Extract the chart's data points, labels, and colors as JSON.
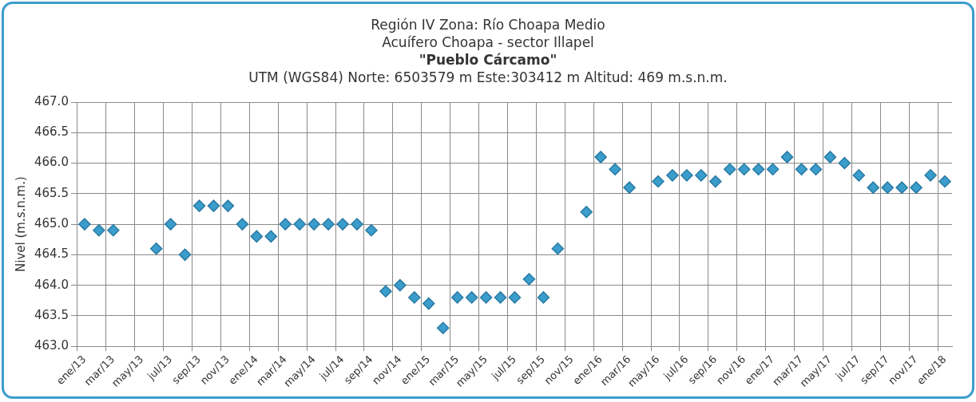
{
  "chart_data": {
    "type": "scatter",
    "title": "Región IV  Zona: Río Choapa Medio",
    "subtitle": "Acuífero Choapa - sector Illapel",
    "annotations": [
      "\"Pueblo Cárcamo\"",
      "UTM (WGS84) Norte: 6503579 m   Este:303412 m   Altitud: 469 m.s.n.m."
    ],
    "ylabel": "Nivel (m.s.n.m.)",
    "categories": [
      "ene/13",
      null,
      "mar/13",
      null,
      "may/13",
      null,
      "jul/13",
      null,
      "sep/13",
      null,
      "nov/13",
      null,
      "ene/14",
      null,
      "mar/14",
      null,
      "may/14",
      null,
      "jul/14",
      null,
      "sep/14",
      null,
      "nov/14",
      null,
      "ene/15",
      null,
      "mar/15",
      null,
      "may/15",
      null,
      "jul/15",
      null,
      "sep/15",
      null,
      "nov/15",
      null,
      "ene/16",
      null,
      "mar/16",
      null,
      "may/16",
      null,
      "jul/16",
      null,
      "sep/16",
      null,
      "nov/16",
      null,
      "ene/17",
      null,
      "mar/17",
      null,
      "may/17",
      null,
      "jul/17",
      null,
      "sep/17",
      null,
      "nov/17",
      null,
      "ene/18"
    ],
    "series": [
      {
        "color": "#3a9dcb",
        "values": [
          465.0,
          464.9,
          464.9,
          null,
          null,
          464.6,
          465.0,
          464.5,
          465.3,
          465.3,
          465.3,
          465.0,
          464.8,
          464.8,
          465.0,
          465.0,
          465.0,
          465.0,
          465.0,
          465.0,
          464.9,
          463.9,
          464.0,
          463.8,
          463.7,
          463.3,
          463.8,
          463.8,
          463.8,
          463.8,
          463.8,
          464.1,
          463.8,
          464.6,
          null,
          465.2,
          466.1,
          465.9,
          465.6,
          null,
          465.7,
          465.8,
          465.8,
          465.8,
          465.7,
          465.9,
          465.9,
          465.9,
          465.9,
          466.1,
          465.9,
          465.9,
          466.1,
          466.0,
          465.8,
          465.6,
          465.6,
          465.6,
          465.6,
          465.8,
          465.7
        ]
      }
    ],
    "ylim": [
      463,
      467
    ],
    "yticks": [
      {
        "value": 463,
        "label": "463.0"
      },
      {
        "value": 463.5,
        "label": "463.5"
      },
      {
        "value": 464,
        "label": "464.0"
      },
      {
        "value": 464.5,
        "label": "464.5"
      },
      {
        "value": 465,
        "label": "465.0"
      },
      {
        "value": 465.5,
        "label": "465.5"
      },
      {
        "value": 466,
        "label": "466.0"
      },
      {
        "value": 466.5,
        "label": "466.5"
      },
      {
        "value": 467,
        "label": "467.0"
      }
    ],
    "grid": true,
    "marker": "diamond",
    "legend": false
  }
}
